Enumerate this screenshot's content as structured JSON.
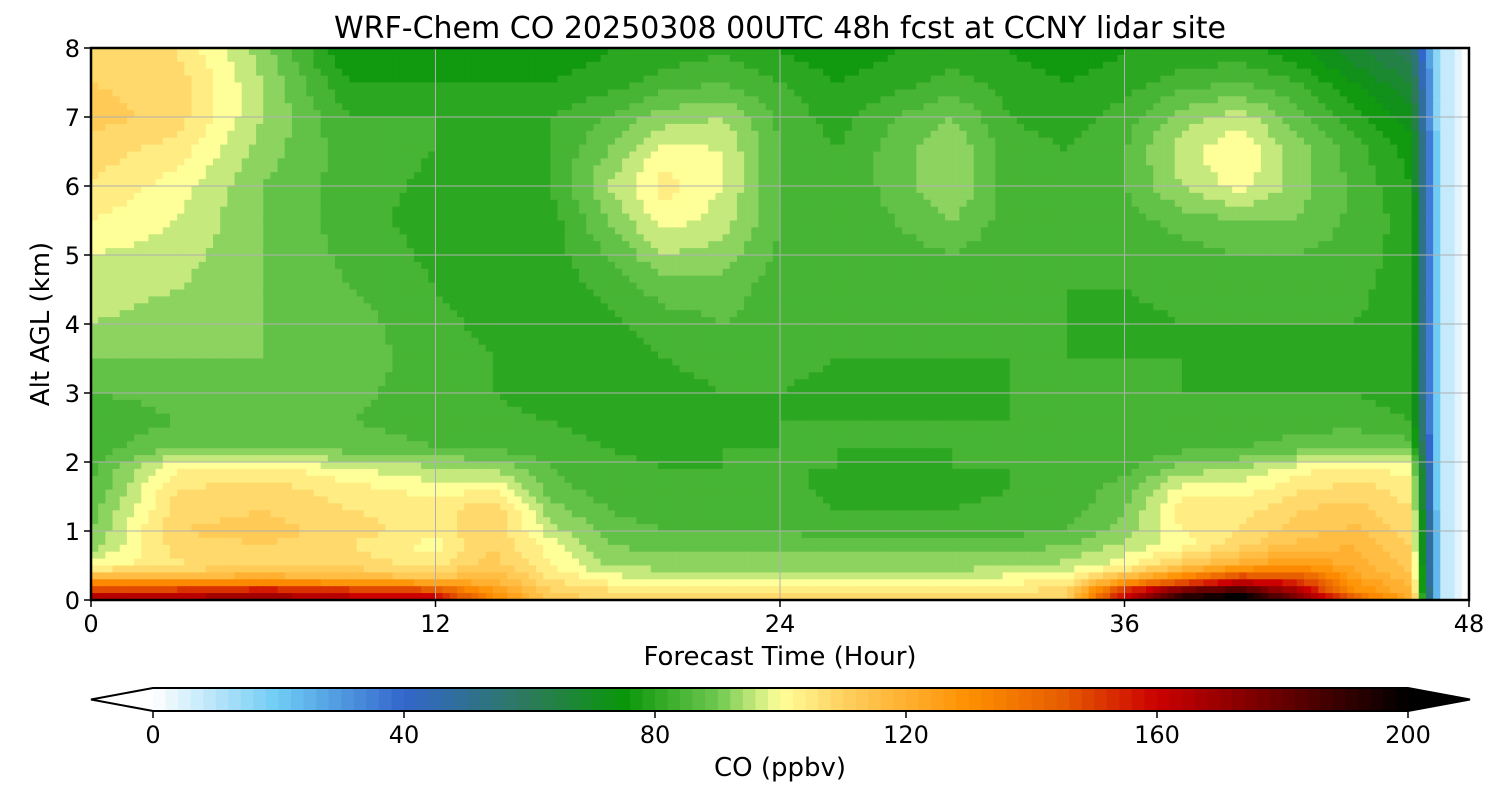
{
  "chart_data": {
    "type": "heatmap",
    "title": "WRF-Chem CO  20250308 00UTC 48h fcst at CCNY lidar site",
    "xlabel": "Forecast Time (Hour)",
    "ylabel": "Alt AGL (km)",
    "xlim": [
      0,
      48
    ],
    "ylim": [
      0,
      8
    ],
    "xticks": [
      "0",
      "12",
      "24",
      "36",
      "48"
    ],
    "yticks": [
      "0",
      "1",
      "2",
      "3",
      "4",
      "5",
      "6",
      "7",
      "8"
    ],
    "grid": true,
    "x": [
      0,
      3,
      6,
      9,
      12,
      14,
      16,
      18,
      20,
      22,
      24,
      26,
      28,
      30,
      32,
      34,
      36,
      38,
      40,
      42,
      44,
      46,
      47,
      48
    ],
    "y": [
      0.05,
      0.15,
      0.3,
      0.5,
      0.8,
      1.0,
      1.3,
      1.6,
      1.9,
      2.2,
      2.6,
      3.0,
      3.5,
      4.0,
      4.5,
      5.0,
      5.5,
      6.0,
      6.5,
      7.0,
      7.5,
      7.9
    ],
    "z": [
      [
        165,
        165,
        168,
        162,
        158,
        130,
        112,
        108,
        106,
        106,
        106,
        106,
        106,
        106,
        106,
        110,
        160,
        190,
        200,
        175,
        140,
        120,
        10,
        0
      ],
      [
        150,
        150,
        155,
        150,
        145,
        125,
        110,
        106,
        104,
        104,
        104,
        104,
        104,
        104,
        104,
        108,
        150,
        175,
        185,
        165,
        130,
        118,
        10,
        0
      ],
      [
        120,
        120,
        122,
        118,
        115,
        118,
        106,
        100,
        98,
        98,
        98,
        98,
        98,
        98,
        100,
        102,
        120,
        135,
        155,
        150,
        125,
        115,
        10,
        0
      ],
      [
        100,
        105,
        110,
        108,
        105,
        112,
        102,
        94,
        92,
        92,
        92,
        92,
        92,
        92,
        93,
        95,
        100,
        112,
        120,
        128,
        120,
        112,
        10,
        0
      ],
      [
        92,
        108,
        110,
        106,
        100,
        110,
        100,
        90,
        88,
        88,
        88,
        88,
        88,
        88,
        88,
        90,
        95,
        100,
        108,
        115,
        118,
        110,
        10,
        0
      ],
      [
        90,
        110,
        112,
        108,
        104,
        110,
        96,
        88,
        86,
        86,
        86,
        84,
        85,
        85,
        85,
        86,
        92,
        102,
        106,
        112,
        115,
        108,
        10,
        0
      ],
      [
        88,
        108,
        110,
        106,
        104,
        110,
        92,
        86,
        84,
        84,
        84,
        82,
        82,
        82,
        83,
        84,
        90,
        104,
        104,
        110,
        112,
        106,
        10,
        0
      ],
      [
        86,
        106,
        108,
        104,
        100,
        102,
        88,
        84,
        83,
        83,
        83,
        81,
        80,
        81,
        82,
        83,
        88,
        100,
        100,
        105,
        108,
        104,
        10,
        0
      ],
      [
        85,
        102,
        104,
        98,
        95,
        94,
        86,
        83,
        82,
        82,
        82,
        82,
        81,
        82,
        82,
        82,
        85,
        92,
        94,
        100,
        104,
        100,
        10,
        0
      ],
      [
        84,
        90,
        90,
        88,
        86,
        85,
        84,
        82,
        81,
        82,
        82,
        82,
        82,
        82,
        82,
        82,
        83,
        85,
        86,
        88,
        90,
        88,
        10,
        0
      ],
      [
        82,
        86,
        86,
        86,
        84,
        83,
        82,
        80,
        80,
        81,
        82,
        82,
        82,
        82,
        82,
        82,
        82,
        83,
        83,
        84,
        84,
        82,
        10,
        0
      ],
      [
        86,
        88,
        88,
        87,
        84,
        82,
        80,
        79,
        80,
        82,
        82,
        81,
        81,
        81,
        82,
        82,
        82,
        82,
        82,
        82,
        82,
        80,
        10,
        0
      ],
      [
        90,
        90,
        90,
        88,
        84,
        82,
        80,
        80,
        82,
        84,
        83,
        82,
        82,
        82,
        82,
        82,
        82,
        82,
        81,
        81,
        81,
        80,
        10,
        0
      ],
      [
        94,
        92,
        90,
        88,
        83,
        81,
        80,
        81,
        84,
        86,
        84,
        82,
        82,
        82,
        82,
        82,
        81,
        82,
        82,
        82,
        82,
        80,
        10,
        0
      ],
      [
        96,
        94,
        90,
        86,
        82,
        80,
        80,
        83,
        88,
        88,
        84,
        82,
        83,
        83,
        82,
        82,
        82,
        83,
        84,
        84,
        83,
        80,
        10,
        0
      ],
      [
        98,
        96,
        90,
        85,
        81,
        79,
        80,
        86,
        94,
        92,
        85,
        82,
        84,
        86,
        83,
        82,
        82,
        84,
        86,
        86,
        84,
        80,
        10,
        0
      ],
      [
        102,
        98,
        90,
        84,
        80,
        78,
        80,
        90,
        100,
        96,
        86,
        82,
        86,
        90,
        84,
        82,
        84,
        88,
        90,
        90,
        85,
        80,
        10,
        0
      ],
      [
        106,
        100,
        90,
        84,
        81,
        79,
        82,
        94,
        104,
        98,
        86,
        82,
        88,
        94,
        84,
        82,
        86,
        94,
        100,
        92,
        85,
        78,
        10,
        0
      ],
      [
        108,
        104,
        92,
        84,
        82,
        80,
        82,
        90,
        100,
        98,
        86,
        82,
        88,
        94,
        84,
        82,
        86,
        96,
        102,
        92,
        84,
        76,
        10,
        0
      ],
      [
        112,
        108,
        94,
        82,
        82,
        80,
        82,
        86,
        92,
        94,
        85,
        80,
        86,
        90,
        82,
        80,
        84,
        92,
        96,
        88,
        80,
        72,
        10,
        0
      ],
      [
        110,
        108,
        94,
        78,
        78,
        78,
        78,
        80,
        84,
        86,
        82,
        78,
        80,
        84,
        80,
        78,
        80,
        84,
        86,
        82,
        74,
        66,
        10,
        0
      ],
      [
        108,
        106,
        92,
        74,
        74,
        76,
        76,
        78,
        80,
        82,
        78,
        76,
        78,
        80,
        78,
        76,
        78,
        80,
        80,
        76,
        68,
        60,
        10,
        0
      ]
    ],
    "colorbar": {
      "label": "CO  (ppbv)",
      "ticks": [
        "0",
        "40",
        "80",
        "120",
        "160",
        "200"
      ],
      "tick_values": [
        0,
        40,
        80,
        120,
        160,
        200
      ],
      "min": 0,
      "max": 200,
      "extend": "both",
      "colors": [
        "#ffffff",
        "#6ecbf4",
        "#3366cc",
        "#2c7a5a",
        "#0a960a",
        "#6fc850",
        "#ffff99",
        "#ffd060",
        "#ff9000",
        "#e65c00",
        "#cc0000",
        "#660000",
        "#000000"
      ],
      "color_stops": [
        0,
        20,
        40,
        60,
        75,
        90,
        100,
        110,
        130,
        145,
        160,
        180,
        200
      ]
    }
  }
}
